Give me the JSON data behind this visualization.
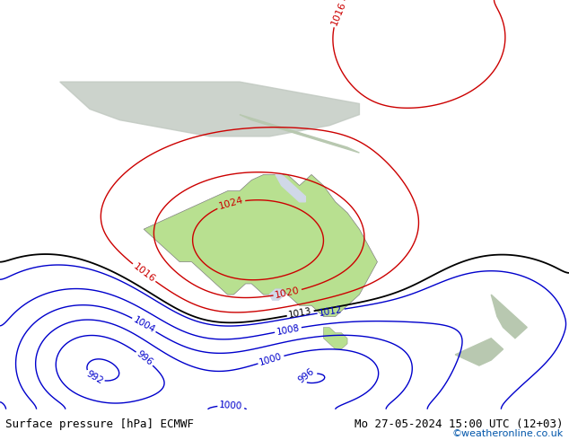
{
  "title_left": "Surface pressure [hPa] ECMWF",
  "title_right": "Mo 27-05-2024 15:00 UTC (12+03)",
  "credit": "©weatheronline.co.uk",
  "background_color": "#d0d8e8",
  "land_color": "#c8e8b0",
  "australia_color": "#b8e090",
  "font_color_black": "#000000",
  "font_color_blue": "#0000cc",
  "font_color_red": "#cc0000",
  "font_color_credit": "#0055aa",
  "contour_colors": {
    "low": "#0000cc",
    "mid": "#000000",
    "high": "#cc0000"
  },
  "bottom_bar_color": "#e8e8e8",
  "figsize": [
    6.34,
    4.9
  ],
  "dpi": 100
}
